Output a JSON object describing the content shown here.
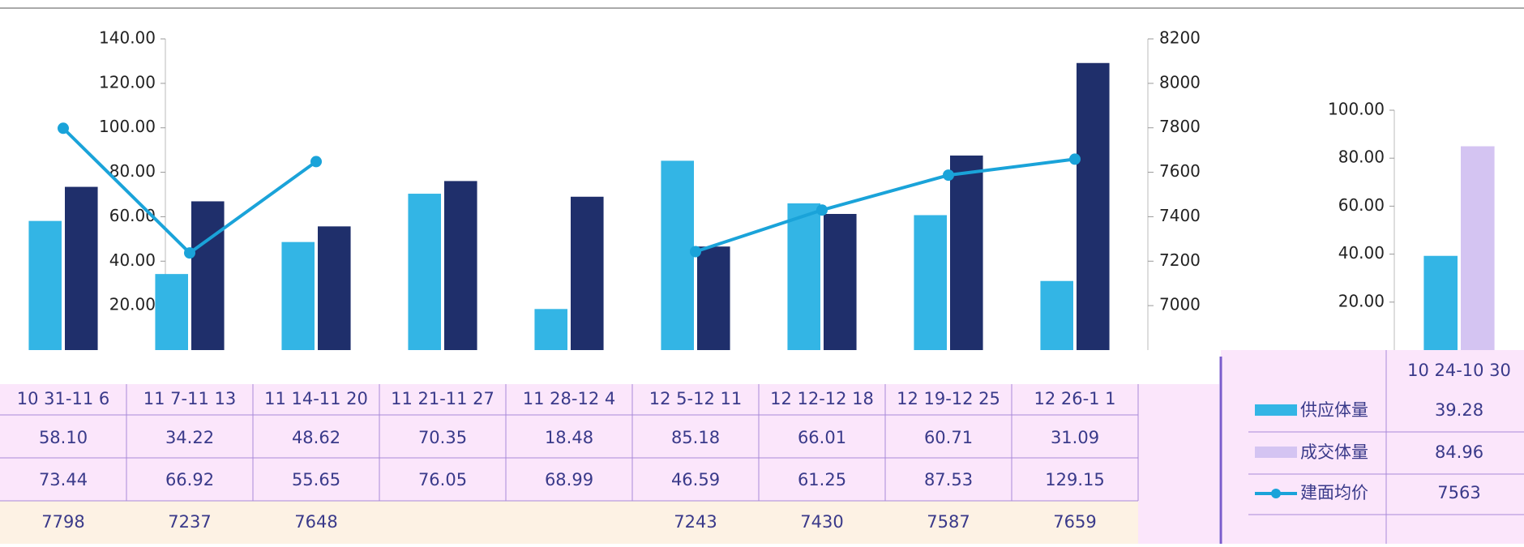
{
  "chart_data": [
    {
      "type": "bar-line",
      "categories": [
        "10 31-11 6",
        "11 7-11 13",
        "11 14-11 20",
        "11 21-11 27",
        "11 28-12 4",
        "12 5-12 11",
        "12 12-12 18",
        "12 19-12 25",
        "12 26-1 1"
      ],
      "series": [
        {
          "type": "bar",
          "color": "#33b5e5",
          "values": [
            58.1,
            34.22,
            48.62,
            70.35,
            18.48,
            85.18,
            66.01,
            60.71,
            31.09
          ],
          "value_labels": [
            "58.10",
            "34.22",
            "48.62",
            "70.35",
            "18.48",
            "85.18",
            "66.01",
            "60.71",
            "31.09"
          ]
        },
        {
          "type": "bar",
          "color": "#1f2f6b",
          "values": [
            73.44,
            66.92,
            55.65,
            76.05,
            68.99,
            46.59,
            61.25,
            87.53,
            129.15
          ]
        },
        {
          "type": "line",
          "axis": "y2",
          "color": "#1aa3d9",
          "values": [
            7798,
            7237,
            7648,
            null,
            null,
            7243,
            7430,
            7587,
            7659
          ]
        }
      ],
      "ylim": [
        0,
        140
      ],
      "yticks": [
        {
          "value": 20,
          "label": "20.00"
        },
        {
          "value": 40,
          "label": "40.00"
        },
        {
          "value": 60,
          "label": "60.00"
        },
        {
          "value": 80,
          "label": "80.00"
        },
        {
          "value": 100,
          "label": "100.00"
        },
        {
          "value": 120,
          "label": "120.00"
        },
        {
          "value": 140,
          "label": "140.00"
        }
      ],
      "y2lim": [
        6800,
        8200
      ],
      "y2ticks": [
        7000,
        7200,
        7400,
        7600,
        7800,
        8000,
        8200
      ]
    },
    {
      "type": "bar-line",
      "categories": [
        "10 24-10 30"
      ],
      "series": [
        {
          "name": "供应体量",
          "type": "bar",
          "color": "#33b5e5",
          "values": [
            39.28
          ]
        },
        {
          "name": "成交体量",
          "type": "bar",
          "color": "#d4c4f2",
          "values": [
            84.96
          ]
        },
        {
          "name": "建面均价",
          "type": "line",
          "axis": "y2",
          "color": "#1aa3d9",
          "values": [
            7563
          ]
        }
      ],
      "ylim": [
        0,
        100
      ],
      "yticks": [
        {
          "value": 20,
          "label": "20.00"
        },
        {
          "value": 40,
          "label": "40.00"
        },
        {
          "value": 60,
          "label": "60.00"
        },
        {
          "value": 80,
          "label": "80.00"
        },
        {
          "value": 100,
          "label": "100.00"
        }
      ]
    }
  ]
}
